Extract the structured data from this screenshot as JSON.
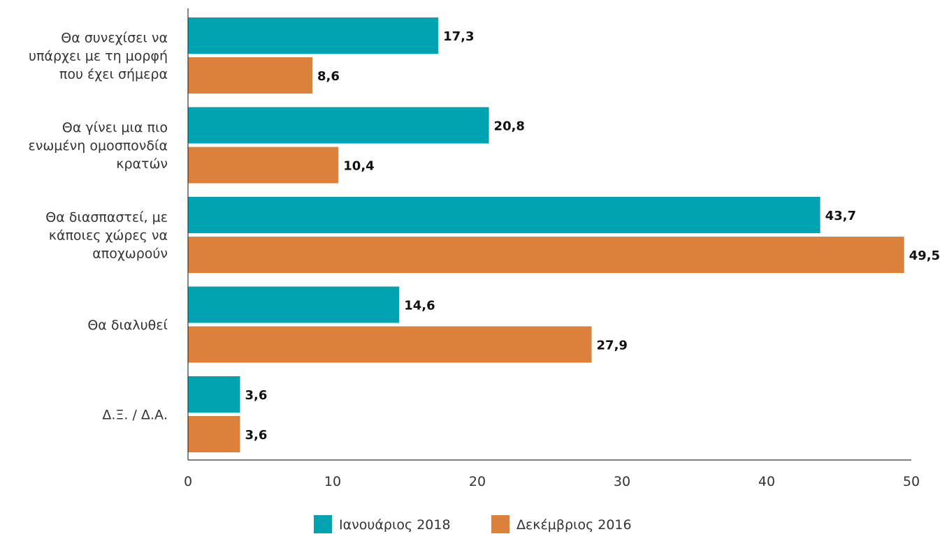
{
  "chart_data": {
    "type": "bar",
    "orientation": "horizontal",
    "categories": [
      [
        "Θα συνεχίσει να",
        "υπάρχει με τη μορφή",
        "που έχει σήμερα"
      ],
      [
        "Θα γίνει μια πιο",
        "ενωμένη ομοσπονδία",
        "κρατών"
      ],
      [
        "Θα διασπαστεί, με",
        "κάποιες χώρες να",
        "αποχωρούν"
      ],
      [
        "Θα διαλυθεί"
      ],
      [
        "Δ.Ξ. / Δ.Α."
      ]
    ],
    "series": [
      {
        "name": "Ιανουάριος 2018",
        "color": "#00A3AF",
        "values": [
          17.3,
          20.8,
          43.7,
          14.6,
          3.6
        ],
        "labels": [
          "17,3",
          "20,8",
          "43,7",
          "14,6",
          "3,6"
        ]
      },
      {
        "name": "Δεκέμβριος 2016",
        "color": "#DC813B",
        "values": [
          8.6,
          10.4,
          49.5,
          27.9,
          3.6
        ],
        "labels": [
          "8,6",
          "10,4",
          "49,5",
          "27,9",
          "3,6"
        ]
      }
    ],
    "xlim": [
      0,
      50
    ],
    "xticks": [
      0,
      10,
      20,
      30,
      40,
      50
    ],
    "grid": false,
    "legend": "bottom-center"
  }
}
